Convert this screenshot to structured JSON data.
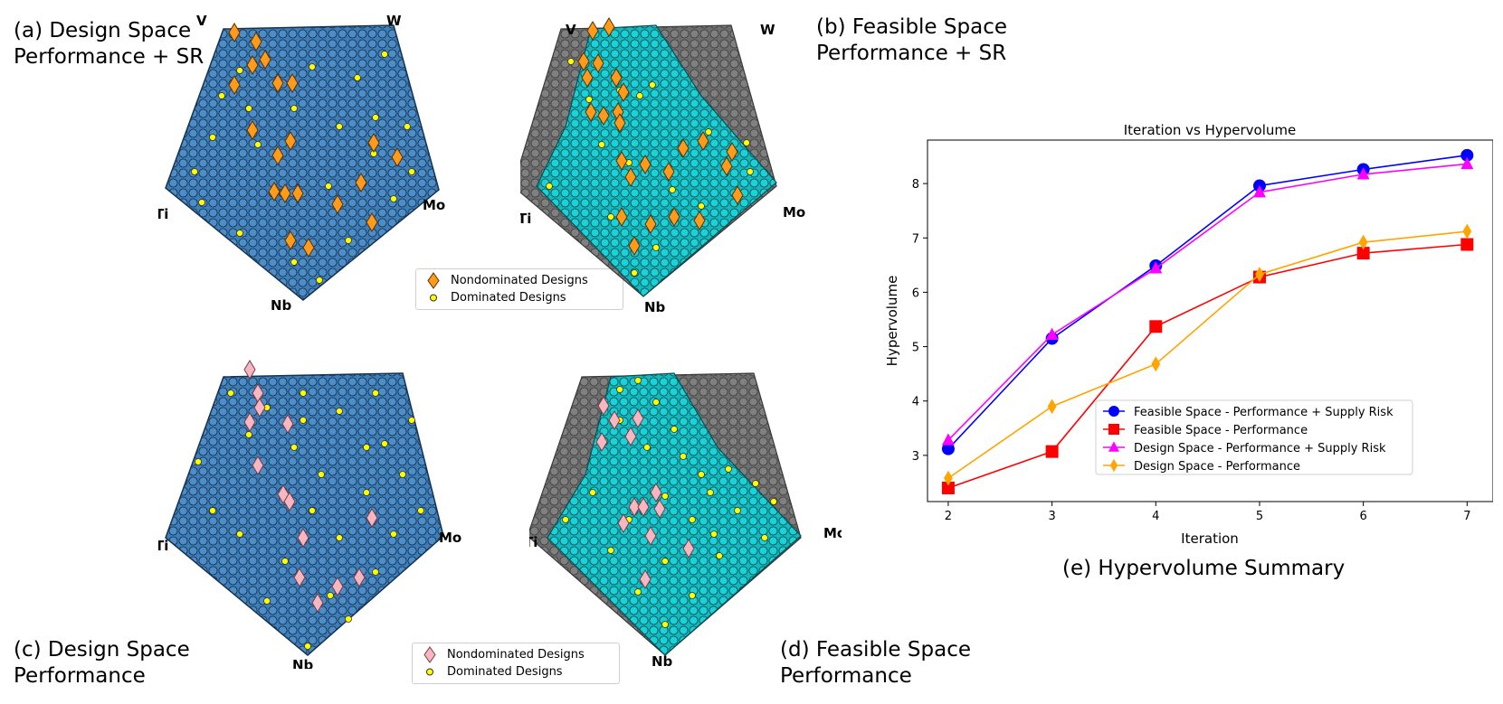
{
  "captions": {
    "a": "(a) Design Space\nPerformance + SR",
    "b": "(b) Feasible Space\nPerformance + SR",
    "c": "(c) Design Space\nPerformance",
    "d": "(d) Feasible Space\nPerformance",
    "e": "(e) Hypervolume Summary"
  },
  "vertices": {
    "v": "V",
    "w": "W",
    "ti": "Ti",
    "mo": "Mo",
    "nb": "Nb"
  },
  "legend_top": {
    "nondominated": "Nondominated Designs",
    "dominated": "Dominated Designs"
  },
  "legend_bottom": {
    "nondominated": "Nondominated Designs",
    "dominated": "Dominated Designs"
  },
  "colors": {
    "design_space": "#3f7fb9",
    "feasible_space": "#19d3d8",
    "infeasible": "#6e6e6e",
    "nondominated_sr": "#ff9a1a",
    "nondominated_perf": "#f7b7c1",
    "dominated": "#ffff00"
  },
  "chart_data": {
    "type": "line",
    "title": "Iteration vs Hypervolume",
    "xlabel": "Iteration",
    "ylabel": "Hypervolume",
    "x": [
      2,
      3,
      4,
      5,
      6,
      7
    ],
    "xticks": [
      "2",
      "3",
      "4",
      "5",
      "6",
      "7"
    ],
    "yticks": [
      "3",
      "4",
      "5",
      "6",
      "7",
      "8"
    ],
    "xlim": [
      1.8,
      7.25
    ],
    "ylim": [
      2.15,
      8.8
    ],
    "legend_position": "lower right",
    "series": [
      {
        "name": "Feasible Space - Performance + Supply Risk",
        "color": "#0000ff",
        "marker": "circle",
        "values": [
          3.12,
          5.15,
          6.49,
          7.96,
          8.26,
          8.52
        ]
      },
      {
        "name": "Feasible Space - Performance",
        "color": "#ff0000",
        "marker": "square",
        "values": [
          2.4,
          3.07,
          5.37,
          6.28,
          6.72,
          6.88
        ]
      },
      {
        "name": "Design Space - Performance + Supply Risk",
        "color": "#ff00ff",
        "marker": "triangle",
        "values": [
          3.28,
          5.22,
          6.44,
          7.84,
          8.17,
          8.36
        ]
      },
      {
        "name": "Design Space - Performance",
        "color": "#ffa500",
        "marker": "diamond",
        "values": [
          2.58,
          3.9,
          4.68,
          6.33,
          6.92,
          7.12
        ]
      }
    ]
  }
}
